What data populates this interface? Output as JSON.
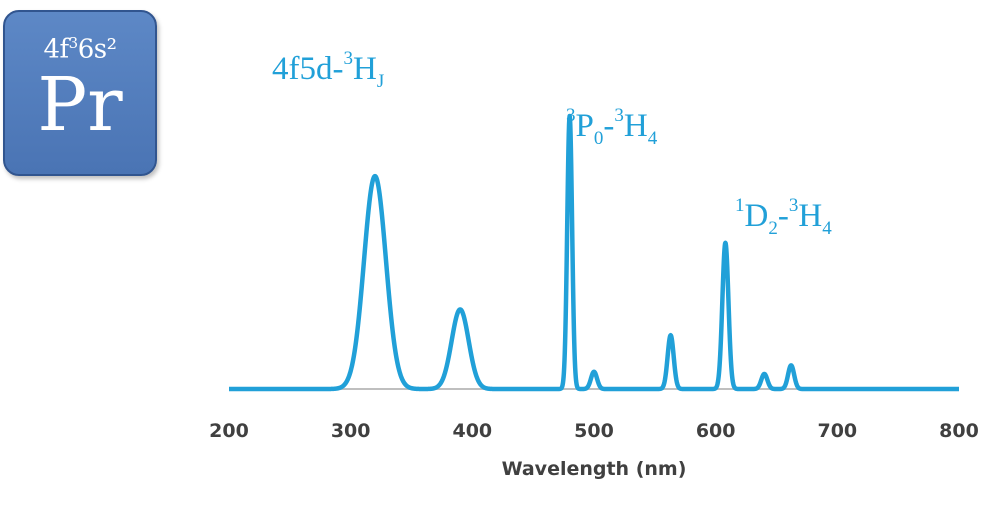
{
  "element": {
    "configuration_base": "4f",
    "configuration_sup": "3",
    "configuration_tail": "6s²",
    "symbol": "Pr"
  },
  "colors": {
    "tile": "#4a74b4",
    "line": "#21a0d8",
    "axis": "#bfbfbf",
    "text": "#404040"
  },
  "chart_data": {
    "type": "line",
    "xlabel": "Wavelength (nm)",
    "ylabel": "",
    "xlim": [
      200,
      800
    ],
    "ylim": [
      0,
      1
    ],
    "xticks": [
      200,
      300,
      400,
      500,
      600,
      700,
      800
    ],
    "grid": false,
    "legend": "none",
    "peaks": [
      {
        "center": 320,
        "height": 0.99,
        "width": 9
      },
      {
        "center": 390,
        "height": 0.37,
        "width": 7
      },
      {
        "center": 480,
        "height": 1.27,
        "width": 2
      },
      {
        "center": 500,
        "height": 0.08,
        "width": 2.5
      },
      {
        "center": 563,
        "height": 0.25,
        "width": 2.5
      },
      {
        "center": 608,
        "height": 0.68,
        "width": 2.5
      },
      {
        "center": 640,
        "height": 0.07,
        "width": 2.5
      },
      {
        "center": 662,
        "height": 0.11,
        "width": 2.5
      }
    ],
    "annotations": [
      {
        "peak": 320,
        "parts": [
          {
            "t": "4f5d-"
          },
          {
            "t": "3",
            "s": "sup"
          },
          {
            "t": "H"
          },
          {
            "t": "J",
            "s": "sub"
          }
        ]
      },
      {
        "peak": 480,
        "parts": [
          {
            "t": "3",
            "s": "sup"
          },
          {
            "t": "P"
          },
          {
            "t": "0",
            "s": "sub"
          },
          {
            "t": "-"
          },
          {
            "t": "3",
            "s": "sup"
          },
          {
            "t": "H"
          },
          {
            "t": "4",
            "s": "sub"
          }
        ]
      },
      {
        "peak": 608,
        "parts": [
          {
            "t": "1",
            "s": "sup"
          },
          {
            "t": "D"
          },
          {
            "t": "2",
            "s": "sub"
          },
          {
            "t": "-"
          },
          {
            "t": "3",
            "s": "sup"
          },
          {
            "t": "H"
          },
          {
            "t": "4",
            "s": "sub"
          }
        ]
      }
    ]
  }
}
